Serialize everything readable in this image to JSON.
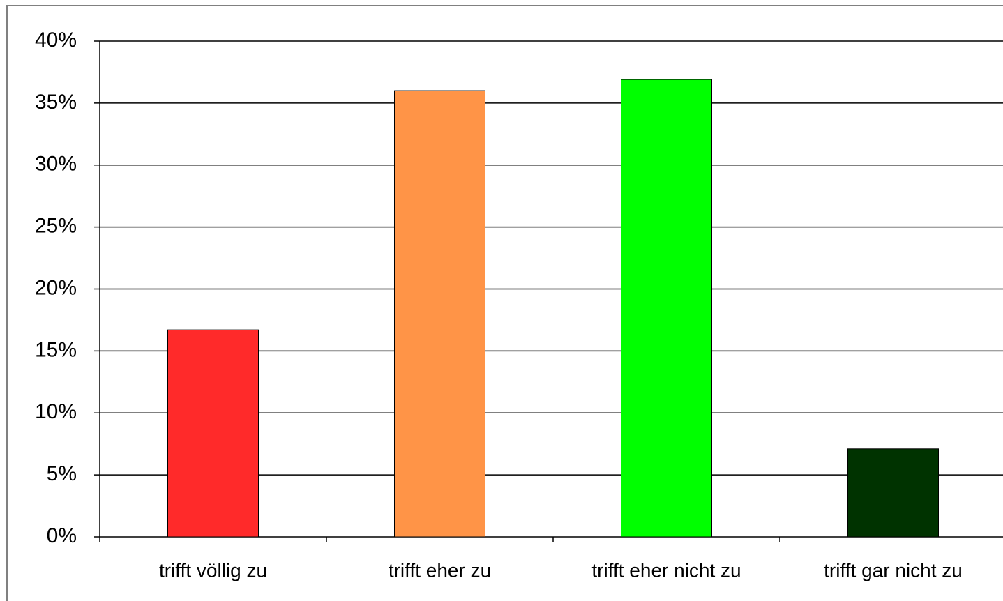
{
  "chart_data": {
    "type": "bar",
    "categories": [
      "trifft völlig zu",
      "trifft eher zu",
      "trifft eher nicht zu",
      "trifft gar nicht zu"
    ],
    "values": [
      16.7,
      36,
      36.9,
      7.1
    ],
    "colors": [
      "#ff2a2a",
      "#ff9447",
      "#00ff00",
      "#003300"
    ],
    "ylim": [
      0,
      40
    ],
    "yticks": [
      {
        "value": 0,
        "label": "0%"
      },
      {
        "value": 5,
        "label": "5%"
      },
      {
        "value": 10,
        "label": "10%"
      },
      {
        "value": 15,
        "label": "15%"
      },
      {
        "value": 20,
        "label": "20%"
      },
      {
        "value": 25,
        "label": "25%"
      },
      {
        "value": 30,
        "label": "30%"
      },
      {
        "value": 35,
        "label": "35%"
      },
      {
        "value": 40,
        "label": "40%"
      }
    ],
    "grid": true
  }
}
